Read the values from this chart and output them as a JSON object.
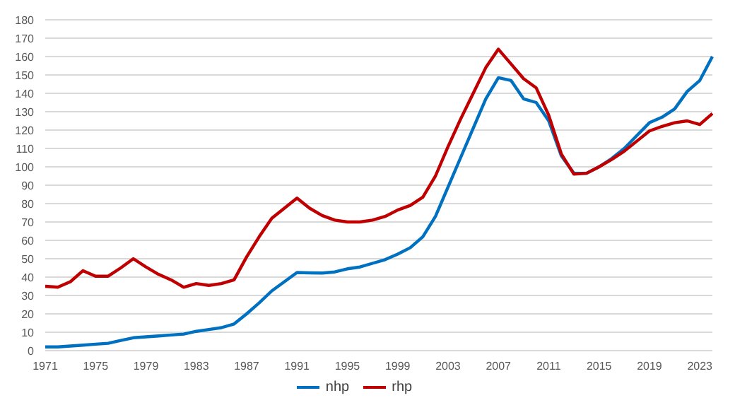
{
  "chart_data": {
    "type": "line",
    "categories": [
      "1971",
      null,
      null,
      null,
      "1975",
      null,
      null,
      null,
      "1979",
      null,
      null,
      null,
      "1983",
      null,
      null,
      null,
      "1987",
      null,
      null,
      null,
      "1991",
      null,
      null,
      null,
      "1995",
      null,
      null,
      null,
      "1999",
      null,
      null,
      null,
      "2003",
      null,
      null,
      null,
      "2007",
      null,
      null,
      null,
      "2011",
      null,
      null,
      null,
      "2015",
      null,
      null,
      null,
      "2019",
      null,
      null,
      null,
      "2023",
      null
    ],
    "series": [
      {
        "name": "nhp",
        "color": "#0070c0",
        "values": [
          2,
          2,
          2.5,
          3,
          3.5,
          4,
          5.5,
          7,
          7.5,
          8,
          8.5,
          9,
          10.5,
          11.5,
          12.5,
          14.5,
          20,
          26,
          32.5,
          37.5,
          42.5,
          42.3,
          42.2,
          42.8,
          44.5,
          45.5,
          47.5,
          49.5,
          52.5,
          56,
          62,
          73,
          89,
          105,
          121,
          137,
          148.5,
          147,
          137,
          135,
          125,
          106,
          96.5,
          96.5,
          100,
          104.5,
          110,
          117,
          124,
          127,
          131.5,
          141,
          147,
          160
        ]
      },
      {
        "name": "rhp",
        "color": "#c00000",
        "values": [
          35,
          34.5,
          37.5,
          43.5,
          40.5,
          40.5,
          45,
          50,
          45.5,
          41.5,
          38.5,
          34.5,
          36.5,
          35.5,
          36.5,
          38.5,
          51,
          62,
          72,
          77.5,
          83,
          77.5,
          73.5,
          71,
          70,
          70,
          71,
          73,
          76.5,
          79,
          83.5,
          95,
          111,
          126,
          140,
          154,
          164,
          156,
          148,
          143,
          128,
          107,
          96,
          96.5,
          100,
          104,
          108.5,
          114,
          119.5,
          122,
          124,
          125,
          123,
          129
        ]
      }
    ],
    "ylim": [
      0,
      180
    ],
    "yticks": [
      0,
      10,
      20,
      30,
      40,
      50,
      60,
      70,
      80,
      90,
      100,
      110,
      120,
      130,
      140,
      150,
      160,
      170,
      180
    ],
    "grid": "y",
    "legend": "bottom",
    "marker": "none",
    "line_style": "solid"
  }
}
